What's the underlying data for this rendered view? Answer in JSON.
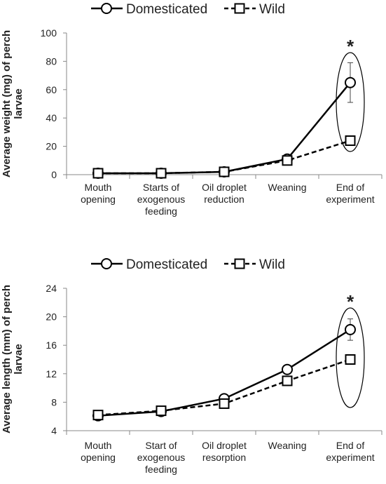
{
  "chart_data": [
    {
      "type": "line",
      "ylabel": "Average  weight (mg) of perch\nlarvae",
      "categories": [
        "Mouth\nopening",
        "Starts of\nexogenous\nfeeding",
        "Oil droplet\nreduction",
        "Weaning",
        "End of\nexperiment"
      ],
      "series": [
        {
          "name": "Domesticated",
          "color": "#000000",
          "marker": "circle",
          "dash": false,
          "values": [
            1,
            1,
            2,
            11,
            65
          ],
          "errors": [
            null,
            null,
            null,
            null,
            14
          ]
        },
        {
          "name": "Wild",
          "color": "#000000",
          "marker": "square",
          "dash": true,
          "values": [
            1,
            1,
            2,
            10,
            24
          ],
          "errors": [
            null,
            null,
            null,
            null,
            3
          ]
        }
      ],
      "ylim": [
        0,
        100
      ],
      "yticks": [
        0,
        20,
        40,
        60,
        80,
        100
      ],
      "annotation": "*"
    },
    {
      "type": "line",
      "ylabel": "Average length (mm) of perch\nlarvae",
      "categories": [
        "Mouth\nopening",
        "Start of\nexogenous\nfeeding",
        "Oil droplet\nresorption",
        "Weaning",
        "End of\nexperiment"
      ],
      "series": [
        {
          "name": "Domesticated",
          "color": "#000000",
          "marker": "circle",
          "dash": false,
          "values": [
            6.1,
            6.7,
            8.5,
            12.6,
            18.2
          ],
          "errors": [
            null,
            null,
            null,
            null,
            1.5
          ]
        },
        {
          "name": "Wild",
          "color": "#000000",
          "marker": "square",
          "dash": true,
          "values": [
            6.2,
            6.8,
            7.8,
            11,
            14
          ],
          "errors": [
            null,
            null,
            null,
            null,
            0.5
          ]
        }
      ],
      "ylim": [
        4,
        24
      ],
      "yticks": [
        4,
        8,
        12,
        16,
        20,
        24
      ],
      "annotation": "*"
    }
  ]
}
